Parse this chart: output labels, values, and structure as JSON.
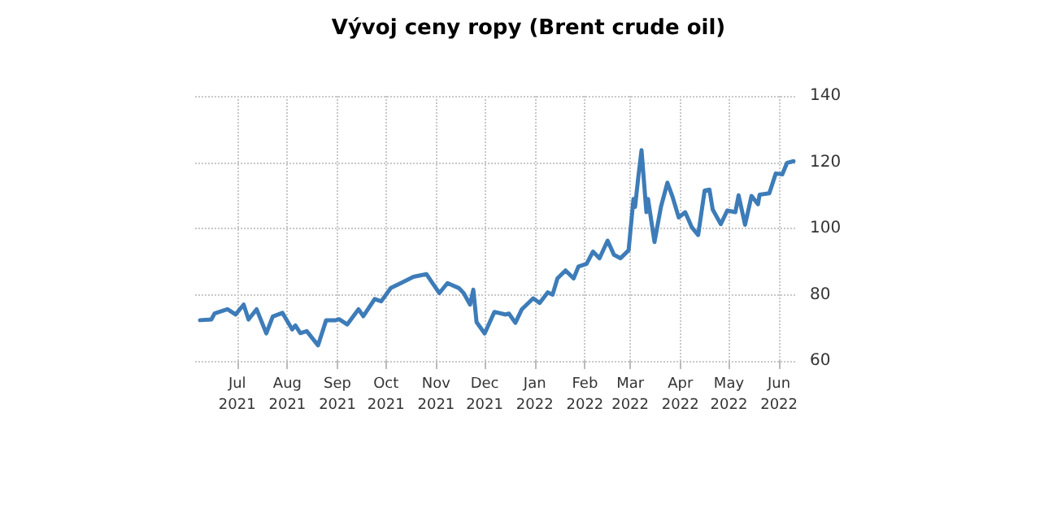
{
  "chart_data": {
    "type": "line",
    "title": "Vývoj ceny ropy (Brent crude oil)",
    "x": [
      "2021-06-08",
      "2021-06-15",
      "2021-06-17",
      "2021-06-25",
      "2021-06-30",
      "2021-07-05",
      "2021-07-08",
      "2021-07-13",
      "2021-07-19",
      "2021-07-23",
      "2021-07-29",
      "2021-08-04",
      "2021-08-06",
      "2021-08-09",
      "2021-08-13",
      "2021-08-20",
      "2021-08-25",
      "2021-08-31",
      "2021-09-02",
      "2021-09-07",
      "2021-09-14",
      "2021-09-17",
      "2021-09-24",
      "2021-09-28",
      "2021-10-04",
      "2021-10-11",
      "2021-10-18",
      "2021-10-26",
      "2021-10-29",
      "2021-11-03",
      "2021-11-08",
      "2021-11-15",
      "2021-11-18",
      "2021-11-22",
      "2021-11-24",
      "2021-11-26",
      "2021-12-01",
      "2021-12-07",
      "2021-12-14",
      "2021-12-16",
      "2021-12-20",
      "2021-12-24",
      "2021-12-31",
      "2022-01-04",
      "2022-01-09",
      "2022-01-12",
      "2022-01-15",
      "2022-01-20",
      "2022-01-25",
      "2022-01-28",
      "2022-02-02",
      "2022-02-06",
      "2022-02-10",
      "2022-02-15",
      "2022-02-19",
      "2022-02-23",
      "2022-02-28",
      "2022-03-03",
      "2022-03-04",
      "2022-03-06",
      "2022-03-08",
      "2022-03-11",
      "2022-03-12",
      "2022-03-16",
      "2022-03-20",
      "2022-03-24",
      "2022-03-27",
      "2022-03-31",
      "2022-04-04",
      "2022-04-08",
      "2022-04-12",
      "2022-04-16",
      "2022-04-19",
      "2022-04-21",
      "2022-04-26",
      "2022-04-30",
      "2022-05-05",
      "2022-05-07",
      "2022-05-11",
      "2022-05-15",
      "2022-05-19",
      "2022-05-20",
      "2022-05-26",
      "2022-05-30",
      "2022-06-03",
      "2022-06-06",
      "2022-06-10"
    ],
    "values": [
      72.3,
      72.5,
      74.3,
      75.6,
      74,
      77,
      72.5,
      75.6,
      68.3,
      73.4,
      74.5,
      69.5,
      70.7,
      68.4,
      69,
      64.7,
      72.3,
      72.3,
      72.6,
      71,
      75.6,
      73.5,
      78.7,
      78,
      82,
      83.7,
      85.4,
      86.2,
      84,
      80.5,
      83.5,
      82,
      80.5,
      77,
      81.5,
      71.7,
      68.3,
      74.8,
      74,
      74.3,
      71.5,
      75.6,
      78.9,
      77.5,
      80.7,
      80,
      84.9,
      87.3,
      84.9,
      88.5,
      89.3,
      93,
      91,
      96.3,
      92,
      91,
      93.4,
      108.9,
      106.5,
      115.5,
      123.6,
      104.9,
      108.9,
      95.9,
      106.5,
      113.8,
      109.8,
      103.3,
      104.9,
      100.4,
      98,
      111.4,
      111.7,
      105.7,
      101.3,
      105.4,
      104.9,
      110,
      101.1,
      109.8,
      107.3,
      110.2,
      110.6,
      116.6,
      116.3,
      119.8,
      120.3
    ],
    "color": "#3d7cb8",
    "xlim": [
      "2021-06-05",
      "2022-06-12"
    ],
    "xticks": [
      {
        "value": "2021-07-01",
        "label": "Jul 2021"
      },
      {
        "value": "2021-08-01",
        "label": "Aug 2021"
      },
      {
        "value": "2021-09-01",
        "label": "Sep 2021"
      },
      {
        "value": "2021-10-01",
        "label": "Oct 2021"
      },
      {
        "value": "2021-11-01",
        "label": "Nov 2021"
      },
      {
        "value": "2021-12-01",
        "label": "Dec 2021"
      },
      {
        "value": "2022-01-01",
        "label": "Jan 2022"
      },
      {
        "value": "2022-02-01",
        "label": "Feb 2022"
      },
      {
        "value": "2022-03-01",
        "label": "Mar 2022"
      },
      {
        "value": "2022-04-01",
        "label": "Apr 2022"
      },
      {
        "value": "2022-05-01",
        "label": "May 2022"
      },
      {
        "value": "2022-06-01",
        "label": "Jun 2022"
      }
    ],
    "ylim": [
      60,
      140
    ],
    "yticks": [
      60,
      80,
      100,
      120,
      140
    ],
    "grid": true,
    "marker": "none",
    "line_style": "solid"
  }
}
